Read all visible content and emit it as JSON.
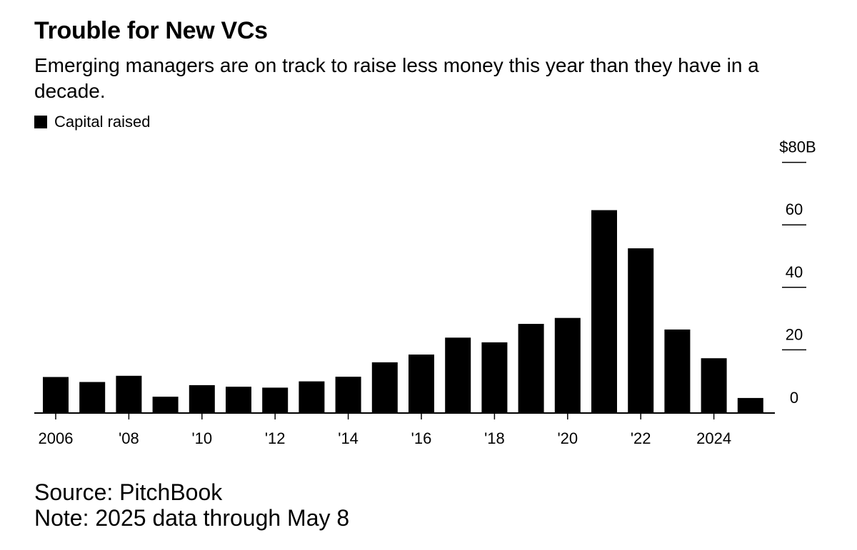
{
  "header": {
    "title": "Trouble for New VCs",
    "subtitle": "Emerging managers are on track to raise less money this year than they have in a decade."
  },
  "legend": {
    "label": "Capital raised"
  },
  "footer": {
    "source": "Source: PitchBook",
    "note": "Note: 2025 data through May 8"
  },
  "colors": {
    "bar": "#000000",
    "background": "#ffffff"
  },
  "chart_data": {
    "type": "bar",
    "title": "Trouble for New VCs",
    "subtitle": "Emerging managers are on track to raise less money this year than they have in a decade.",
    "xlabel": "",
    "ylabel": "",
    "categories": [
      "2006",
      "2007",
      "2008",
      "2009",
      "2010",
      "2011",
      "2012",
      "2013",
      "2014",
      "2015",
      "2016",
      "2017",
      "2018",
      "2019",
      "2020",
      "2021",
      "2022",
      "2023",
      "2024",
      "2025"
    ],
    "x_tick_labels": [
      {
        "category": "2006",
        "label": "2006"
      },
      {
        "category": "2008",
        "label": "'08"
      },
      {
        "category": "2010",
        "label": "'10"
      },
      {
        "category": "2012",
        "label": "'12"
      },
      {
        "category": "2014",
        "label": "'14"
      },
      {
        "category": "2016",
        "label": "'16"
      },
      {
        "category": "2018",
        "label": "'18"
      },
      {
        "category": "2020",
        "label": "'20"
      },
      {
        "category": "2022",
        "label": "'22"
      },
      {
        "category": "2024",
        "label": "2024"
      }
    ],
    "series": [
      {
        "name": "Capital raised",
        "values": [
          11.3,
          9.7,
          11.7,
          5.0,
          8.7,
          8.2,
          7.9,
          9.9,
          11.4,
          16.0,
          18.5,
          23.9,
          22.4,
          28.3,
          30.2,
          64.7,
          52.5,
          26.5,
          17.3,
          4.6
        ]
      }
    ],
    "ylim": [
      0,
      80
    ],
    "y_ticks": [
      {
        "value": 0,
        "label": "0"
      },
      {
        "value": 20,
        "label": "20"
      },
      {
        "value": 40,
        "label": "40"
      },
      {
        "value": 60,
        "label": "60"
      },
      {
        "value": 80,
        "label": "$80B"
      }
    ],
    "y_axis_side": "right",
    "grid": false,
    "legend_position": "top-left"
  }
}
